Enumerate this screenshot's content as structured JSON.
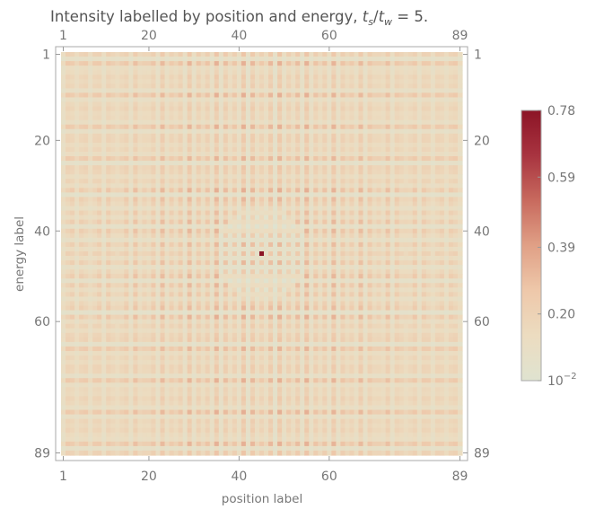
{
  "chart_data": {
    "type": "heatmap",
    "title_main": "Intensity labelled by position and energy, ",
    "title_ratio_num": "t",
    "title_ratio_num_sub": "s",
    "title_ratio_slash": "/",
    "title_ratio_den": "t",
    "title_ratio_den_sub": "w",
    "title_value": " = 5.",
    "xlabel": "position label",
    "ylabel": "energy label",
    "n_positions": 89,
    "n_energies": 89,
    "x_ticks": [
      "1",
      "20",
      "40",
      "60",
      "89"
    ],
    "y_ticks": [
      "1",
      "20",
      "40",
      "60",
      "89"
    ],
    "x_tick_values": [
      1,
      20,
      40,
      60,
      89
    ],
    "y_tick_values": [
      1,
      20,
      40,
      60,
      89
    ],
    "colorbar": {
      "range": [
        0.01,
        0.78
      ],
      "ticks": [
        {
          "value": 0.78,
          "label": "0.78"
        },
        {
          "value": 0.59,
          "label": "0.59"
        },
        {
          "value": 0.39,
          "label": "0.39"
        },
        {
          "value": 0.2,
          "label": "0.20"
        },
        {
          "value": 0.01,
          "label": "10",
          "sup": "−2"
        }
      ],
      "colors": [
        "#dfe3d0",
        "#ecdcc0",
        "#eec8aa",
        "#e0a086",
        "#c86a5e",
        "#a83440",
        "#8c1426"
      ]
    },
    "peak": {
      "position": 45,
      "energy": 45,
      "value": 0.78
    },
    "notes": "89x89 grid with mirror symmetry about the centre; most values 0.01–0.45, single maximum at the centre."
  }
}
